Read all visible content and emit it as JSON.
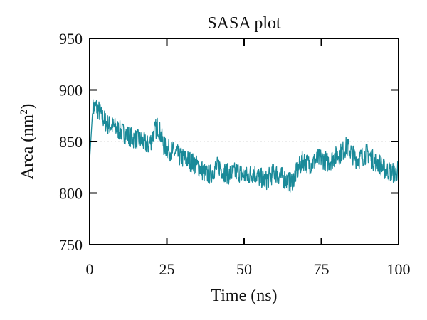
{
  "chart_data": {
    "type": "line",
    "title": "SASA plot",
    "xlabel": "Time (ns)",
    "ylabel_base": "Area (nm",
    "ylabel_sup": "2",
    "ylabel_close": ")",
    "xlim": [
      0,
      100
    ],
    "ylim": [
      750,
      950
    ],
    "xticks": [
      "0",
      "25",
      "50",
      "75",
      "100"
    ],
    "yticks": [
      "750",
      "800",
      "850",
      "900",
      "950"
    ],
    "grid": true,
    "legend": "none",
    "series_color": "#1a8a99",
    "series": [
      {
        "x": [
          0,
          1,
          2,
          3,
          4,
          5,
          6,
          7,
          8,
          9,
          10,
          11,
          12,
          13,
          14,
          15,
          16,
          17,
          18,
          19,
          20,
          21,
          22,
          23,
          24,
          25,
          26,
          27,
          28,
          29,
          30,
          31,
          32,
          33,
          34,
          35,
          36,
          37,
          38,
          39,
          40,
          41,
          42,
          43,
          44,
          45,
          46,
          47,
          48,
          49,
          50,
          51,
          52,
          53,
          54,
          55,
          56,
          57,
          58,
          59,
          60,
          61,
          62,
          63,
          64,
          65,
          66,
          67,
          68,
          69,
          70,
          71,
          72,
          73,
          74,
          75,
          76,
          77,
          78,
          79,
          80,
          81,
          82,
          83,
          84,
          85,
          86,
          87,
          88,
          89,
          90,
          91,
          92,
          93,
          94,
          95,
          96,
          97,
          98,
          99,
          100
        ],
        "values": [
          832,
          882,
          884,
          880,
          874,
          870,
          866,
          865,
          864,
          862,
          860,
          858,
          857,
          855,
          853,
          852,
          852,
          850,
          848,
          846,
          852,
          860,
          865,
          857,
          846,
          843,
          841,
          840,
          838,
          836,
          834,
          833,
          832,
          830,
          828,
          826,
          824,
          820,
          818,
          818,
          822,
          825,
          826,
          822,
          820,
          818,
          819,
          820,
          821,
          819,
          817,
          816,
          818,
          820,
          818,
          815,
          814,
          812,
          815,
          818,
          820,
          818,
          816,
          814,
          812,
          810,
          814,
          820,
          826,
          832,
          830,
          828,
          829,
          831,
          833,
          834,
          832,
          830,
          832,
          834,
          836,
          838,
          841,
          845,
          843,
          838,
          834,
          833,
          835,
          837,
          839,
          835,
          831,
          830,
          828,
          824,
          822,
          821,
          820,
          819,
          823
        ]
      }
    ]
  }
}
